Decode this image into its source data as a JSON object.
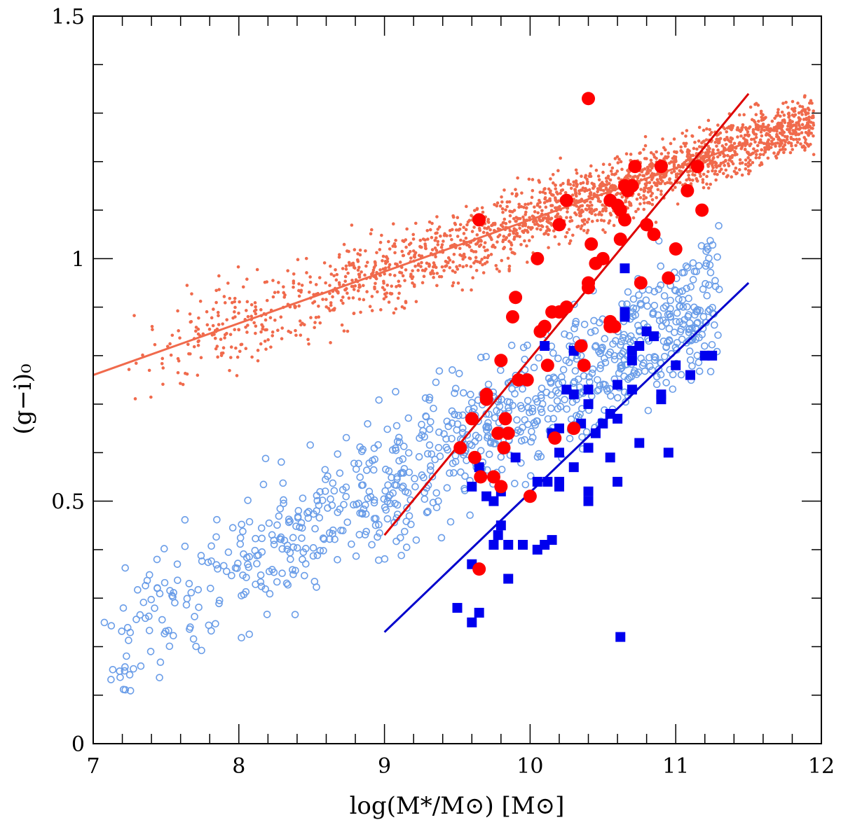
{
  "chart_data": {
    "type": "scatter",
    "title": "",
    "xlabel": "log(M*/M⊙) [M⊙]",
    "ylabel": "(g−i)₀",
    "xlim": [
      7,
      12
    ],
    "ylim": [
      0,
      1.5
    ],
    "xticks": [
      7,
      8,
      9,
      10,
      11,
      12
    ],
    "xtick_labels": [
      "7",
      "8",
      "9",
      "10",
      "11",
      "12"
    ],
    "yticks": [
      0,
      0.5,
      1,
      1.5
    ],
    "ytick_labels": [
      "0",
      "0.5",
      "1",
      "1.5"
    ],
    "grid": false,
    "colors": {
      "small_dots": "#f06a4c",
      "open_circles": "#6a9de8",
      "red_circles": "#ff0000",
      "blue_squares": "#0000ee",
      "salmon_line": "#f06a4c",
      "red_line": "#dd0000",
      "blue_line": "#0000cc"
    },
    "lines": [
      {
        "color_key": "salmon_line",
        "x": [
          7.0,
          11.5
        ],
        "y": [
          0.76,
          1.24
        ]
      },
      {
        "color_key": "red_line",
        "x": [
          9.0,
          11.5
        ],
        "y": [
          0.43,
          1.34
        ]
      },
      {
        "color_key": "blue_line",
        "x": [
          9.0,
          11.5
        ],
        "y": [
          0.23,
          0.95
        ]
      }
    ],
    "series": [
      {
        "marker": "square",
        "color_key": "blue_squares",
        "x": [
          9.6,
          9.6,
          9.5,
          9.65,
          9.65,
          9.6,
          9.8,
          9.85,
          9.8,
          9.9,
          9.95,
          10.1,
          10.15,
          10.05,
          9.75,
          9.85,
          10.2,
          10.2,
          10.2,
          10.15,
          10.4,
          10.4,
          10.4,
          10.55,
          10.6,
          10.65,
          10.65,
          10.7,
          10.7,
          10.75,
          10.8,
          10.85,
          10.9,
          10.95,
          11.0,
          11.1,
          11.2,
          11.25,
          10.3,
          10.35,
          10.4,
          10.45,
          10.55,
          10.6,
          10.65,
          10.7,
          10.75,
          10.9,
          10.1,
          10.2,
          10.3,
          10.5,
          10.6,
          9.7,
          9.75,
          10.05,
          10.12,
          9.78,
          10.25,
          10.3,
          10.4,
          10.62
        ],
        "y": [
          0.53,
          0.37,
          0.28,
          0.57,
          0.27,
          0.25,
          0.45,
          0.34,
          0.52,
          0.59,
          0.41,
          0.41,
          0.42,
          0.54,
          0.5,
          0.41,
          0.53,
          0.6,
          0.65,
          0.64,
          0.5,
          0.52,
          0.61,
          0.68,
          0.74,
          0.88,
          0.98,
          0.79,
          0.81,
          0.62,
          0.85,
          0.84,
          0.72,
          0.6,
          0.78,
          0.76,
          0.8,
          0.8,
          0.72,
          0.66,
          0.7,
          0.64,
          0.59,
          0.67,
          0.89,
          0.73,
          0.82,
          0.71,
          0.82,
          0.54,
          0.57,
          0.66,
          0.54,
          0.51,
          0.41,
          0.4,
          0.54,
          0.43,
          0.73,
          0.81,
          0.73,
          0.22
        ]
      },
      {
        "marker": "filled-circle",
        "color_key": "red_circles",
        "x": [
          9.52,
          9.6,
          9.62,
          9.66,
          9.7,
          9.75,
          9.8,
          9.82,
          9.85,
          9.8,
          9.88,
          9.9,
          9.98,
          10.05,
          10.1,
          10.12,
          10.17,
          10.2,
          10.25,
          10.3,
          10.35,
          10.37,
          10.4,
          10.42,
          10.45,
          10.5,
          10.55,
          10.58,
          10.6,
          10.62,
          10.65,
          10.67,
          10.7,
          10.72,
          10.76,
          10.8,
          10.85,
          10.9,
          10.95,
          11.0,
          11.08,
          11.15,
          11.18,
          9.65,
          9.83,
          9.7,
          10.0,
          10.1,
          10.15,
          10.25,
          10.4,
          9.65,
          9.78,
          10.07,
          9.92,
          10.55,
          10.4,
          10.62,
          10.65,
          10.55,
          10.2
        ],
        "y": [
          0.61,
          0.67,
          0.59,
          0.55,
          0.71,
          0.55,
          0.53,
          0.61,
          0.64,
          0.79,
          0.88,
          0.92,
          0.75,
          1.0,
          0.86,
          0.78,
          0.63,
          0.89,
          0.9,
          0.65,
          0.82,
          0.78,
          0.95,
          1.03,
          0.99,
          1.0,
          0.87,
          0.86,
          1.11,
          1.04,
          1.08,
          1.14,
          1.15,
          1.19,
          0.95,
          1.07,
          1.05,
          1.19,
          0.96,
          1.02,
          1.14,
          1.19,
          1.1,
          0.36,
          0.67,
          0.72,
          0.51,
          0.86,
          0.89,
          1.12,
          1.33,
          1.08,
          0.64,
          0.85,
          0.75,
          1.12,
          0.94,
          1.1,
          1.15,
          0.86,
          1.07
        ]
      }
    ]
  }
}
